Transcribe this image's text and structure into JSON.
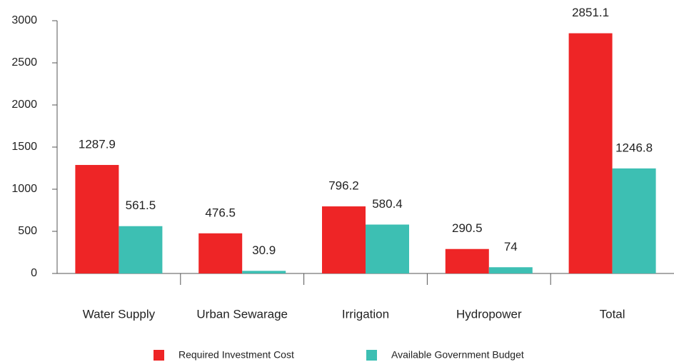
{
  "chart_data": {
    "type": "bar",
    "categories": [
      "Water Supply",
      "Urban Sewarage",
      "Irrigation",
      "Hydropower",
      "Total"
    ],
    "series": [
      {
        "name": "Required Investment Cost",
        "color": "#ee2526",
        "values": [
          1287.9,
          476.5,
          796.2,
          290.5,
          2851.1
        ]
      },
      {
        "name": "Available Government Budget",
        "color": "#3dbfb3",
        "values": [
          561.5,
          30.9,
          580.4,
          74,
          1246.8
        ]
      }
    ],
    "ylim": [
      0,
      3000
    ],
    "yticks": [
      0,
      500,
      1000,
      1500,
      2000,
      2500,
      3000
    ],
    "grid": false,
    "legend": "bottom"
  }
}
